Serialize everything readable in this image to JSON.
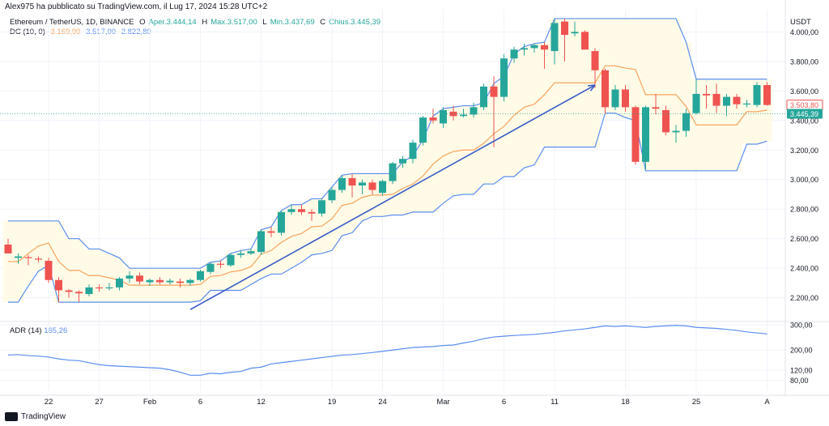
{
  "header": {
    "publisher_line": "Alex975 ha pubblicato su TradingView.com, il Lug 17, 2024 15:28 UTC+2"
  },
  "legend": {
    "symbol": "Ethereum / TetherUS, 1D, BINANCE",
    "open_label": "O",
    "open_text": "Aper.3.444,14",
    "high_label": "H",
    "high_text": "Max.3.517,00",
    "low_label": "L",
    "low_text": "Min.3.437,69",
    "close_label": "C",
    "close_text": "Chius.3.445,39",
    "dc_label": "DC (10, 0)",
    "dc_mid": "3.169,90",
    "dc_upper": "3.517,00",
    "dc_lower": "2.822,80"
  },
  "adr_legend": {
    "label": "ADR (14)",
    "value": "165,26"
  },
  "unit": "USDT",
  "footer": {
    "brand": "TradingView"
  },
  "colors": {
    "up": "#26a69a",
    "down": "#ef5350",
    "channel": "#5b8def",
    "midline": "#f7a35c",
    "fill": "#fffbe6",
    "arrow": "#3a5bc7",
    "adr": "#5b8def",
    "close_tag": "#26a69a",
    "dc_tag": "#ef5350"
  },
  "chart_data": [
    {
      "type": "candlestick",
      "title": "Ethereum / TetherUS, 1D, BINANCE",
      "ylim": [
        2050,
        4150
      ],
      "y_ticks": [
        "4.000,00",
        "3.800,00",
        "3.600,00",
        "3.400,00",
        "3.200,00",
        "3.000,00",
        "2.800,00",
        "2.600,00",
        "2.400,00",
        "2.200,00"
      ],
      "y_tick_values": [
        4000,
        3800,
        3600,
        3400,
        3200,
        3000,
        2800,
        2600,
        2400,
        2200
      ],
      "x_ticks": [
        "22",
        "27",
        "Feb",
        "6",
        "12",
        "19",
        "24",
        "Mar",
        "6",
        "11",
        "18",
        "25",
        "A"
      ],
      "x_tick_days": [
        4,
        9,
        14,
        19,
        25,
        32,
        37,
        43,
        49,
        54,
        61,
        68,
        75
      ],
      "last_price_label": "3.445,39",
      "dc_price_label": "3.503,80",
      "candles": [
        {
          "d": 0,
          "o": 2560,
          "h": 2600,
          "l": 2500,
          "c": 2500
        },
        {
          "d": 1,
          "o": 2470,
          "h": 2500,
          "l": 2430,
          "c": 2480
        },
        {
          "d": 2,
          "o": 2475,
          "h": 2490,
          "l": 2420,
          "c": 2470
        },
        {
          "d": 3,
          "o": 2465,
          "h": 2480,
          "l": 2440,
          "c": 2460
        },
        {
          "d": 4,
          "o": 2450,
          "h": 2470,
          "l": 2300,
          "c": 2320
        },
        {
          "d": 5,
          "o": 2320,
          "h": 2340,
          "l": 2170,
          "c": 2250
        },
        {
          "d": 6,
          "o": 2250,
          "h": 2260,
          "l": 2200,
          "c": 2240
        },
        {
          "d": 7,
          "o": 2240,
          "h": 2250,
          "l": 2170,
          "c": 2230
        },
        {
          "d": 8,
          "o": 2225,
          "h": 2290,
          "l": 2210,
          "c": 2270
        },
        {
          "d": 9,
          "o": 2270,
          "h": 2290,
          "l": 2240,
          "c": 2265
        },
        {
          "d": 10,
          "o": 2265,
          "h": 2300,
          "l": 2250,
          "c": 2270
        },
        {
          "d": 11,
          "o": 2270,
          "h": 2340,
          "l": 2250,
          "c": 2330
        },
        {
          "d": 12,
          "o": 2330,
          "h": 2380,
          "l": 2300,
          "c": 2350
        },
        {
          "d": 13,
          "o": 2350,
          "h": 2370,
          "l": 2290,
          "c": 2310
        },
        {
          "d": 14,
          "o": 2305,
          "h": 2330,
          "l": 2280,
          "c": 2320
        },
        {
          "d": 15,
          "o": 2320,
          "h": 2340,
          "l": 2290,
          "c": 2305
        },
        {
          "d": 16,
          "o": 2305,
          "h": 2330,
          "l": 2290,
          "c": 2315
        },
        {
          "d": 17,
          "o": 2310,
          "h": 2330,
          "l": 2270,
          "c": 2300
        },
        {
          "d": 18,
          "o": 2300,
          "h": 2330,
          "l": 2280,
          "c": 2320
        },
        {
          "d": 19,
          "o": 2320,
          "h": 2390,
          "l": 2310,
          "c": 2380
        },
        {
          "d": 20,
          "o": 2375,
          "h": 2440,
          "l": 2360,
          "c": 2430
        },
        {
          "d": 21,
          "o": 2430,
          "h": 2450,
          "l": 2400,
          "c": 2425
        },
        {
          "d": 22,
          "o": 2420,
          "h": 2500,
          "l": 2410,
          "c": 2490
        },
        {
          "d": 23,
          "o": 2490,
          "h": 2520,
          "l": 2470,
          "c": 2500
        },
        {
          "d": 24,
          "o": 2500,
          "h": 2530,
          "l": 2490,
          "c": 2515
        },
        {
          "d": 25,
          "o": 2510,
          "h": 2660,
          "l": 2490,
          "c": 2650
        },
        {
          "d": 26,
          "o": 2650,
          "h": 2680,
          "l": 2610,
          "c": 2640
        },
        {
          "d": 27,
          "o": 2640,
          "h": 2790,
          "l": 2620,
          "c": 2780
        },
        {
          "d": 28,
          "o": 2780,
          "h": 2830,
          "l": 2760,
          "c": 2800
        },
        {
          "d": 29,
          "o": 2800,
          "h": 2830,
          "l": 2760,
          "c": 2780
        },
        {
          "d": 30,
          "o": 2780,
          "h": 2800,
          "l": 2720,
          "c": 2770
        },
        {
          "d": 31,
          "o": 2770,
          "h": 2870,
          "l": 2750,
          "c": 2860
        },
        {
          "d": 32,
          "o": 2860,
          "h": 2950,
          "l": 2840,
          "c": 2930
        },
        {
          "d": 33,
          "o": 2930,
          "h": 3030,
          "l": 2910,
          "c": 3010
        },
        {
          "d": 34,
          "o": 3010,
          "h": 3040,
          "l": 2880,
          "c": 2960
        },
        {
          "d": 35,
          "o": 2960,
          "h": 3000,
          "l": 2900,
          "c": 2980
        },
        {
          "d": 36,
          "o": 2980,
          "h": 3000,
          "l": 2900,
          "c": 2930
        },
        {
          "d": 37,
          "o": 2910,
          "h": 3000,
          "l": 2890,
          "c": 2990
        },
        {
          "d": 38,
          "o": 2990,
          "h": 3120,
          "l": 2970,
          "c": 3110
        },
        {
          "d": 39,
          "o": 3110,
          "h": 3160,
          "l": 3080,
          "c": 3140
        },
        {
          "d": 40,
          "o": 3140,
          "h": 3270,
          "l": 3110,
          "c": 3250
        },
        {
          "d": 41,
          "o": 3250,
          "h": 3430,
          "l": 3230,
          "c": 3420
        },
        {
          "d": 42,
          "o": 3420,
          "h": 3480,
          "l": 3380,
          "c": 3400
        },
        {
          "d": 43,
          "o": 3380,
          "h": 3490,
          "l": 3350,
          "c": 3470
        },
        {
          "d": 44,
          "o": 3460,
          "h": 3500,
          "l": 3400,
          "c": 3430
        },
        {
          "d": 45,
          "o": 3430,
          "h": 3480,
          "l": 3420,
          "c": 3440
        },
        {
          "d": 46,
          "o": 3440,
          "h": 3520,
          "l": 3420,
          "c": 3490
        },
        {
          "d": 47,
          "o": 3490,
          "h": 3650,
          "l": 3470,
          "c": 3630
        },
        {
          "d": 48,
          "o": 3630,
          "h": 3700,
          "l": 3220,
          "c": 3560
        },
        {
          "d": 49,
          "o": 3560,
          "h": 3850,
          "l": 3530,
          "c": 3820
        },
        {
          "d": 50,
          "o": 3820,
          "h": 3900,
          "l": 3790,
          "c": 3880
        },
        {
          "d": 51,
          "o": 3880,
          "h": 3920,
          "l": 3840,
          "c": 3890
        },
        {
          "d": 52,
          "o": 3890,
          "h": 3920,
          "l": 3860,
          "c": 3910
        },
        {
          "d": 53,
          "o": 3910,
          "h": 3930,
          "l": 3750,
          "c": 3880
        },
        {
          "d": 54,
          "o": 3870,
          "h": 4090,
          "l": 3780,
          "c": 4060
        },
        {
          "d": 55,
          "o": 4070,
          "h": 4090,
          "l": 3800,
          "c": 3980
        },
        {
          "d": 56,
          "o": 3990,
          "h": 4070,
          "l": 3970,
          "c": 4000
        },
        {
          "d": 57,
          "o": 4000,
          "h": 4010,
          "l": 3900,
          "c": 3880
        },
        {
          "d": 58,
          "o": 3870,
          "h": 3890,
          "l": 3620,
          "c": 3740
        },
        {
          "d": 59,
          "o": 3740,
          "h": 3750,
          "l": 3440,
          "c": 3490
        },
        {
          "d": 60,
          "o": 3490,
          "h": 3640,
          "l": 3470,
          "c": 3610
        },
        {
          "d": 61,
          "o": 3610,
          "h": 3640,
          "l": 3460,
          "c": 3490
        },
        {
          "d": 62,
          "o": 3490,
          "h": 3500,
          "l": 3100,
          "c": 3120
        },
        {
          "d": 63,
          "o": 3120,
          "h": 3500,
          "l": 3060,
          "c": 3490
        },
        {
          "d": 64,
          "o": 3490,
          "h": 3580,
          "l": 3440,
          "c": 3480
        },
        {
          "d": 65,
          "o": 3470,
          "h": 3500,
          "l": 3300,
          "c": 3320
        },
        {
          "d": 66,
          "o": 3320,
          "h": 3370,
          "l": 3250,
          "c": 3330
        },
        {
          "d": 67,
          "o": 3330,
          "h": 3480,
          "l": 3290,
          "c": 3450
        },
        {
          "d": 68,
          "o": 3450,
          "h": 3680,
          "l": 3440,
          "c": 3580
        },
        {
          "d": 69,
          "o": 3580,
          "h": 3640,
          "l": 3480,
          "c": 3570
        },
        {
          "d": 70,
          "o": 3580,
          "h": 3650,
          "l": 3450,
          "c": 3500
        },
        {
          "d": 71,
          "o": 3500,
          "h": 3580,
          "l": 3430,
          "c": 3560
        },
        {
          "d": 72,
          "o": 3560,
          "h": 3580,
          "l": 3480,
          "c": 3510
        },
        {
          "d": 73,
          "o": 3510,
          "h": 3540,
          "l": 3490,
          "c": 3515
        },
        {
          "d": 74,
          "o": 3505,
          "h": 3660,
          "l": 3490,
          "c": 3640
        },
        {
          "d": 75,
          "o": 3640,
          "h": 3660,
          "l": 3500,
          "c": 3505
        }
      ],
      "donchian_upper": [
        2720,
        2720,
        2720,
        2720,
        2720,
        2720,
        2600,
        2600,
        2530,
        2530,
        2500,
        2470,
        2400,
        2400,
        2400,
        2400,
        2400,
        2400,
        2400,
        2400,
        2440,
        2450,
        2500,
        2520,
        2530,
        2660,
        2680,
        2790,
        2830,
        2830,
        2870,
        2870,
        2950,
        3030,
        3040,
        3040,
        3040,
        3040,
        3040,
        3120,
        3160,
        3270,
        3430,
        3480,
        3490,
        3500,
        3500,
        3520,
        3650,
        3700,
        3850,
        3900,
        3920,
        3930,
        4090,
        4090,
        4090,
        4090,
        4090,
        4090,
        4090,
        4090,
        4090,
        4090,
        4090,
        4090,
        4090,
        3930,
        3680,
        3680,
        3680,
        3680,
        3680,
        3680,
        3680,
        3680
      ],
      "donchian_lower": [
        2170,
        2170,
        2280,
        2380,
        2420,
        2170,
        2170,
        2170,
        2170,
        2170,
        2170,
        2170,
        2170,
        2170,
        2170,
        2170,
        2170,
        2170,
        2170,
        2180,
        2250,
        2250,
        2250,
        2250,
        2290,
        2330,
        2360,
        2360,
        2400,
        2440,
        2490,
        2500,
        2520,
        2620,
        2640,
        2720,
        2750,
        2750,
        2760,
        2760,
        2780,
        2780,
        2780,
        2840,
        2890,
        2900,
        2900,
        2970,
        2970,
        3020,
        3020,
        3080,
        3100,
        3220,
        3220,
        3220,
        3220,
        3220,
        3220,
        3450,
        3450,
        3420,
        3400,
        3060,
        3060,
        3060,
        3060,
        3060,
        3060,
        3060,
        3060,
        3060,
        3060,
        3240,
        3240,
        3260
      ],
      "trendline": {
        "from": {
          "d": 18,
          "price": 2120
        },
        "to": {
          "d": 58,
          "price": 3640
        }
      }
    },
    {
      "type": "line",
      "title": "ADR (14)",
      "ylim": [
        40,
        310
      ],
      "y_ticks": [
        "300,00",
        "200,00",
        "120,00",
        "80,00"
      ],
      "y_tick_values": [
        300,
        200,
        120,
        80
      ],
      "values": [
        180,
        182,
        178,
        176,
        172,
        165,
        160,
        158,
        150,
        142,
        138,
        136,
        134,
        132,
        130,
        128,
        122,
        112,
        100,
        100,
        108,
        106,
        112,
        115,
        128,
        132,
        145,
        150,
        155,
        160,
        165,
        170,
        175,
        180,
        182,
        186,
        190,
        195,
        200,
        205,
        210,
        212,
        214,
        218,
        220,
        228,
        235,
        245,
        252,
        255,
        258,
        260,
        262,
        266,
        270,
        276,
        280,
        284,
        290,
        296,
        294,
        296,
        293,
        290,
        294,
        296,
        298,
        296,
        290,
        288,
        286,
        282,
        278,
        272,
        268,
        264
      ]
    }
  ]
}
